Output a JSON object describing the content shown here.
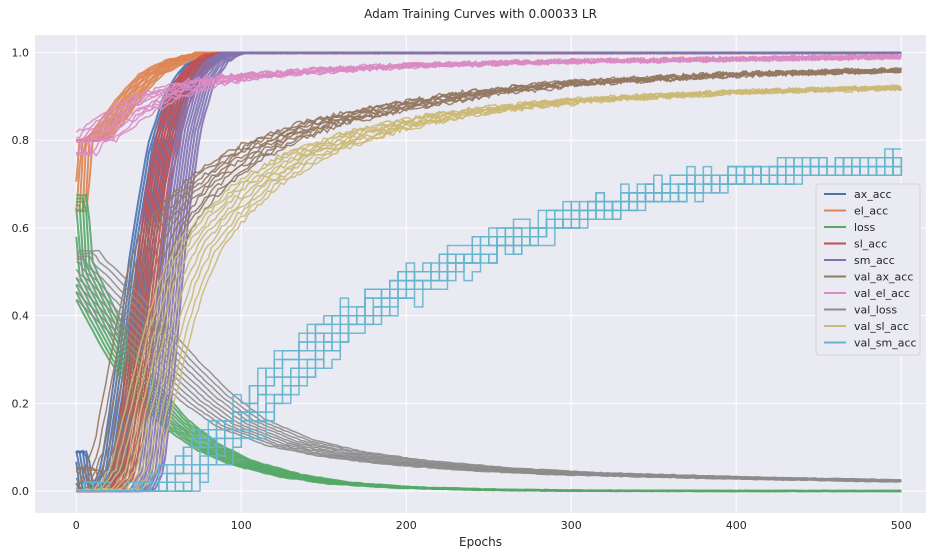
{
  "chart_data": {
    "type": "line",
    "title": "Adam Training Curves with 0.00033 LR",
    "xlabel": "Epochs",
    "ylabel": "",
    "xlim": [
      -25,
      515
    ],
    "ylim": [
      -0.05,
      1.04
    ],
    "xticks": [
      0,
      100,
      200,
      300,
      400,
      500
    ],
    "yticks": [
      0.0,
      0.2,
      0.4,
      0.6,
      0.8,
      1.0
    ],
    "grid": true,
    "legend_position": "center-right",
    "runs_per_series": 10,
    "series": [
      {
        "name": "ax_acc",
        "color": "#4c72b0",
        "points": [
          [
            0,
            0.09
          ],
          [
            3,
            0
          ],
          [
            15,
            0
          ],
          [
            22,
            0.05
          ],
          [
            30,
            0.25
          ],
          [
            40,
            0.55
          ],
          [
            50,
            0.78
          ],
          [
            60,
            0.9
          ],
          [
            70,
            0.96
          ],
          [
            80,
            0.99
          ],
          [
            90,
            1.0
          ],
          [
            500,
            1.0
          ]
        ]
      },
      {
        "name": "el_acc",
        "color": "#dd8452",
        "points": [
          [
            0,
            0.64
          ],
          [
            2,
            0.8
          ],
          [
            10,
            0.8
          ],
          [
            15,
            0.81
          ],
          [
            25,
            0.86
          ],
          [
            35,
            0.91
          ],
          [
            45,
            0.95
          ],
          [
            60,
            0.98
          ],
          [
            80,
            1.0
          ],
          [
            500,
            1.0
          ]
        ]
      },
      {
        "name": "loss",
        "color": "#55a868",
        "points": [
          [
            0,
            0.64
          ],
          [
            2,
            0.5
          ],
          [
            10,
            0.44
          ],
          [
            25,
            0.33
          ],
          [
            40,
            0.24
          ],
          [
            60,
            0.155
          ],
          [
            80,
            0.1
          ],
          [
            100,
            0.065
          ],
          [
            130,
            0.035
          ],
          [
            160,
            0.018
          ],
          [
            200,
            0.008
          ],
          [
            250,
            0.003
          ],
          [
            300,
            0.001
          ],
          [
            400,
            0
          ],
          [
            500,
            0
          ]
        ]
      },
      {
        "name": "sl_acc",
        "color": "#c44e52",
        "points": [
          [
            0,
            0
          ],
          [
            20,
            0
          ],
          [
            28,
            0.03
          ],
          [
            35,
            0.2
          ],
          [
            42,
            0.45
          ],
          [
            50,
            0.7
          ],
          [
            58,
            0.85
          ],
          [
            66,
            0.93
          ],
          [
            75,
            0.97
          ],
          [
            85,
            0.995
          ],
          [
            95,
            1.0
          ],
          [
            500,
            1.0
          ]
        ]
      },
      {
        "name": "sm_acc",
        "color": "#8172b2",
        "points": [
          [
            0,
            0
          ],
          [
            40,
            0
          ],
          [
            46,
            0.05
          ],
          [
            53,
            0.3
          ],
          [
            60,
            0.6
          ],
          [
            68,
            0.82
          ],
          [
            76,
            0.93
          ],
          [
            85,
            0.98
          ],
          [
            95,
            1.0
          ],
          [
            500,
            1.0
          ]
        ]
      },
      {
        "name": "val_ax_acc",
        "color": "#937860",
        "points": [
          [
            0,
            0.05
          ],
          [
            5,
            0
          ],
          [
            15,
            0
          ],
          [
            25,
            0.1
          ],
          [
            35,
            0.3
          ],
          [
            45,
            0.5
          ],
          [
            55,
            0.6
          ],
          [
            70,
            0.67
          ],
          [
            85,
            0.72
          ],
          [
            100,
            0.76
          ],
          [
            120,
            0.8
          ],
          [
            150,
            0.84
          ],
          [
            200,
            0.88
          ],
          [
            250,
            0.91
          ],
          [
            300,
            0.93
          ],
          [
            400,
            0.95
          ],
          [
            500,
            0.96
          ]
        ]
      },
      {
        "name": "val_el_acc",
        "color": "#da8bc3",
        "points": [
          [
            0,
            0.77
          ],
          [
            2,
            0.8
          ],
          [
            10,
            0.8
          ],
          [
            20,
            0.83
          ],
          [
            30,
            0.86
          ],
          [
            50,
            0.9
          ],
          [
            75,
            0.93
          ],
          [
            100,
            0.945
          ],
          [
            150,
            0.96
          ],
          [
            200,
            0.97
          ],
          [
            300,
            0.98
          ],
          [
            400,
            0.985
          ],
          [
            500,
            0.99
          ]
        ]
      },
      {
        "name": "val_loss",
        "color": "#8c8c8c",
        "points": [
          [
            0,
            0.52
          ],
          [
            3,
            0.5
          ],
          [
            10,
            0.48
          ],
          [
            25,
            0.42
          ],
          [
            40,
            0.36
          ],
          [
            60,
            0.28
          ],
          [
            80,
            0.21
          ],
          [
            100,
            0.155
          ],
          [
            130,
            0.11
          ],
          [
            160,
            0.085
          ],
          [
            200,
            0.065
          ],
          [
            250,
            0.05
          ],
          [
            300,
            0.04
          ],
          [
            400,
            0.03
          ],
          [
            500,
            0.023
          ]
        ]
      },
      {
        "name": "val_sl_acc",
        "color": "#ccb974",
        "points": [
          [
            0,
            0
          ],
          [
            25,
            0
          ],
          [
            35,
            0.05
          ],
          [
            45,
            0.2
          ],
          [
            55,
            0.36
          ],
          [
            65,
            0.48
          ],
          [
            75,
            0.56
          ],
          [
            90,
            0.63
          ],
          [
            110,
            0.7
          ],
          [
            140,
            0.77
          ],
          [
            180,
            0.82
          ],
          [
            230,
            0.86
          ],
          [
            300,
            0.89
          ],
          [
            400,
            0.91
          ],
          [
            500,
            0.92
          ]
        ]
      },
      {
        "name": "val_sm_acc",
        "color": "#64b5cd",
        "points": [
          [
            0,
            0
          ],
          [
            40,
            0
          ],
          [
            55,
            0.02
          ],
          [
            70,
            0.07
          ],
          [
            90,
            0.13
          ],
          [
            110,
            0.2
          ],
          [
            135,
            0.3
          ],
          [
            160,
            0.38
          ],
          [
            190,
            0.45
          ],
          [
            220,
            0.51
          ],
          [
            260,
            0.57
          ],
          [
            300,
            0.63
          ],
          [
            350,
            0.68
          ],
          [
            400,
            0.72
          ],
          [
            450,
            0.74
          ],
          [
            500,
            0.75
          ]
        ]
      }
    ]
  }
}
